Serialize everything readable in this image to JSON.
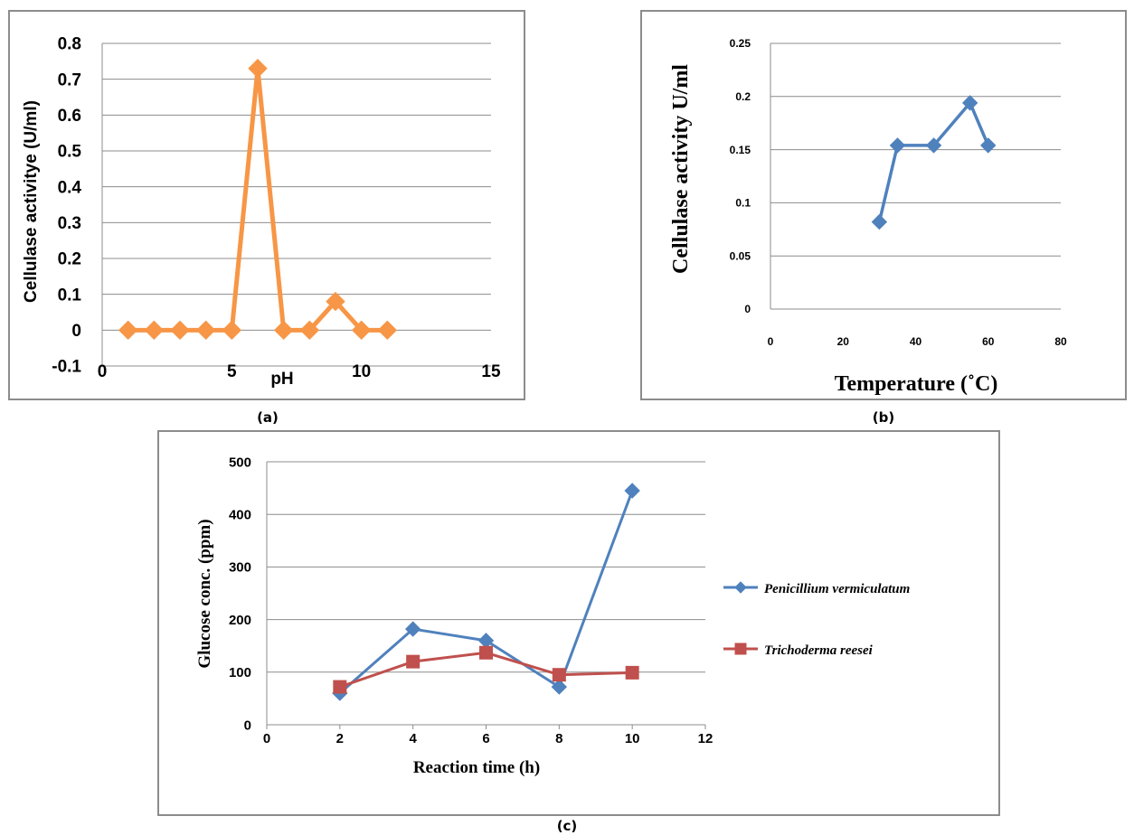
{
  "chart_data": [
    {
      "type": "line",
      "caption": "(a)",
      "xlabel": "pH",
      "ylabel": "Cellulase activitye (U/ml)",
      "xlim": [
        0,
        15
      ],
      "ylim": [
        -0.1,
        0.8
      ],
      "x_ticks": [
        "0",
        "5",
        "10",
        "15"
      ],
      "y_ticks": [
        "-0.1",
        "0",
        "0.1",
        "0.2",
        "0.3",
        "0.4",
        "0.5",
        "0.6",
        "0.7",
        "0.8"
      ],
      "grid": true,
      "colors": {
        "line": "#f79646"
      },
      "series": [
        {
          "x": [
            1,
            2,
            3,
            4,
            5,
            6,
            7,
            8,
            9,
            10,
            11
          ],
          "values": [
            0,
            0,
            0,
            0,
            0,
            0.73,
            0,
            0,
            0.08,
            0,
            0
          ]
        }
      ]
    },
    {
      "type": "line",
      "caption": "(b)",
      "xlabel": "Temperature (˚C)",
      "ylabel": "Cellulase activity U/ml",
      "xlim": [
        0,
        80
      ],
      "ylim": [
        0,
        0.25
      ],
      "x_ticks": [
        "0",
        "20",
        "40",
        "60",
        "80"
      ],
      "y_ticks": [
        "0",
        "0.05",
        "0.1",
        "0.15",
        "0.2",
        "0.25"
      ],
      "grid": true,
      "colors": {
        "line": "#4f81bd"
      },
      "series": [
        {
          "x": [
            30,
            35,
            45,
            55,
            60
          ],
          "values": [
            0.082,
            0.154,
            0.154,
            0.194,
            0.154
          ]
        }
      ]
    },
    {
      "type": "line",
      "caption": "(c)",
      "xlabel": "Reaction time (h)",
      "ylabel": "Glucose conc. (ppm)",
      "xlim": [
        0,
        12
      ],
      "ylim": [
        0,
        500
      ],
      "x_ticks": [
        "0",
        "2",
        "4",
        "6",
        "8",
        "10",
        "12"
      ],
      "y_ticks": [
        "0",
        "100",
        "200",
        "300",
        "400",
        "500"
      ],
      "grid": true,
      "legend_position": "right",
      "series": [
        {
          "name": "Penicillium vermiculatum",
          "color": "#4f81bd",
          "marker": "diamond",
          "x": [
            2,
            4,
            6,
            8,
            10
          ],
          "values": [
            60,
            182,
            160,
            72,
            445
          ]
        },
        {
          "name": "Trichoderma reesei",
          "color": "#c0504d",
          "marker": "square",
          "x": [
            2,
            4,
            6,
            8,
            10
          ],
          "values": [
            72,
            120,
            137,
            95,
            99
          ]
        }
      ]
    }
  ]
}
